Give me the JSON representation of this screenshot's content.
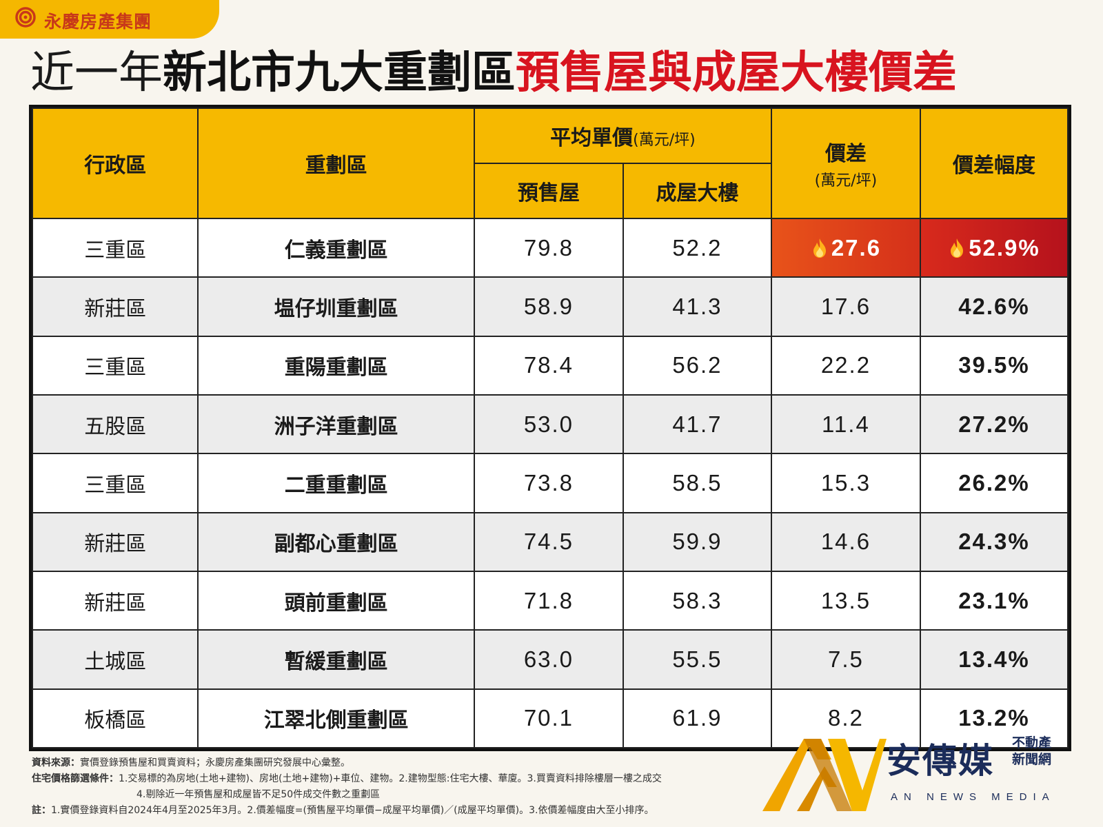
{
  "brand": {
    "name": "永慶房產集團",
    "logo_icon": "spiral-logo-icon",
    "tab_color": "#f5b700"
  },
  "title": {
    "part1": "近一年",
    "part2": "新北市九大重劃區",
    "part3": "預售屋與成屋大樓價差"
  },
  "table": {
    "headers": {
      "district": "行政區",
      "zone": "重劃區",
      "avg_price": "平均單價",
      "avg_price_unit": "(萬元/坪)",
      "presale": "預售屋",
      "existing": "成屋大樓",
      "diff": "價差",
      "diff_unit": "(萬元/坪)",
      "diff_pct": "價差幅度"
    },
    "rows": [
      {
        "district": "三重區",
        "zone": "仁義重劃區",
        "presale": "79.8",
        "existing": "52.2",
        "diff": "27.6",
        "pct": "52.9%"
      },
      {
        "district": "新莊區",
        "zone": "塭仔圳重劃區",
        "presale": "58.9",
        "existing": "41.3",
        "diff": "17.6",
        "pct": "42.6%"
      },
      {
        "district": "三重區",
        "zone": "重陽重劃區",
        "presale": "78.4",
        "existing": "56.2",
        "diff": "22.2",
        "pct": "39.5%"
      },
      {
        "district": "五股區",
        "zone": "洲子洋重劃區",
        "presale": "53.0",
        "existing": "41.7",
        "diff": "11.4",
        "pct": "27.2%"
      },
      {
        "district": "三重區",
        "zone": "二重重劃區",
        "presale": "73.8",
        "existing": "58.5",
        "diff": "15.3",
        "pct": "26.2%"
      },
      {
        "district": "新莊區",
        "zone": "副都心重劃區",
        "presale": "74.5",
        "existing": "59.9",
        "diff": "14.6",
        "pct": "24.3%"
      },
      {
        "district": "新莊區",
        "zone": "頭前重劃區",
        "presale": "71.8",
        "existing": "58.3",
        "diff": "13.5",
        "pct": "23.1%"
      },
      {
        "district": "土城區",
        "zone": "暫緩重劃區",
        "presale": "63.0",
        "existing": "55.5",
        "diff": "7.5",
        "pct": "13.4%"
      },
      {
        "district": "板橋區",
        "zone": "江翠北側重劃區",
        "presale": "70.1",
        "existing": "61.9",
        "diff": "8.2",
        "pct": "13.2%"
      }
    ],
    "highlight_icon": "flame-icon",
    "header_color": "#f6b900",
    "highlight_color": "#d5301a"
  },
  "notes": {
    "source_label": "資料來源：",
    "source_text": "實價登錄預售屋和買賣資料；永慶房產集團研究發展中心彙整。",
    "criteria_label": "住宅價格篩選條件：",
    "criteria_text": "1.交易標的為房地(土地+建物)、房地(土地+建物)+車位、建物。2.建物型態:住宅大樓、華廈。3.買賣資料排除樓層一樓之成交",
    "criteria_text2": "4.剔除近一年預售屋和成屋皆不足50件成交件數之重劃區",
    "footnote_label": "註：",
    "footnote_text": "1.實價登錄資料自2024年4月至2025年3月。2.價差幅度=(預售屋平均單價−成屋平均單價)／(成屋平均單價)。3.依價差幅度由大至小排序。"
  },
  "watermark": {
    "cn": "安傳媒",
    "cn_small_1": "不動產",
    "cn_small_2": "新聞網",
    "en": "AN NEWS MEDIA",
    "logo_icon": "an-logo-icon"
  }
}
